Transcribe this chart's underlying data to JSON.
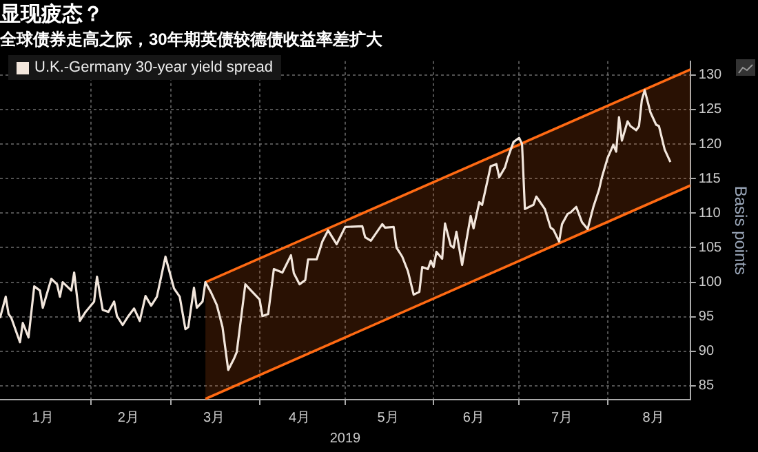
{
  "chart_data": {
    "type": "line",
    "title": "显现疲态？",
    "subtitle": "全球债券走高之际，30年期英债较德债收益率差扩大",
    "xlabel": "2019",
    "ylabel": "Basis points",
    "xlim": [
      "2018-12-31",
      "2019-08-30"
    ],
    "xticks": [
      {
        "value": "2019-01-15",
        "label": "1月"
      },
      {
        "value": "2019-02-01",
        "label": null
      },
      {
        "value": "2019-02-14",
        "label": "2月"
      },
      {
        "value": "2019-03-01",
        "label": null
      },
      {
        "value": "2019-03-16",
        "label": "3月"
      },
      {
        "value": "2019-04-01",
        "label": null
      },
      {
        "value": "2019-04-15",
        "label": "4月"
      },
      {
        "value": "2019-05-01",
        "label": null
      },
      {
        "value": "2019-05-16",
        "label": "5月"
      },
      {
        "value": "2019-06-01",
        "label": null
      },
      {
        "value": "2019-06-15",
        "label": "6月"
      },
      {
        "value": "2019-07-01",
        "label": null
      },
      {
        "value": "2019-07-16",
        "label": "7月"
      },
      {
        "value": "2019-08-01",
        "label": null
      },
      {
        "value": "2019-08-17",
        "label": "8月"
      }
    ],
    "ylim": [
      83,
      132
    ],
    "yticks": [
      85,
      90,
      95,
      100,
      105,
      110,
      115,
      120,
      125,
      130
    ],
    "grid": true,
    "legend": "top left",
    "marker": "none",
    "line_style": "solid",
    "series": [
      {
        "name": "U.K.-Germany 30-year yield spread",
        "color": "#f2e6dc",
        "x": [
          "2018-12-31",
          "2019-01-02",
          "2019-01-03",
          "2019-01-04",
          "2019-01-07",
          "2019-01-08",
          "2019-01-10",
          "2019-01-12",
          "2019-01-14",
          "2019-01-15",
          "2019-01-18",
          "2019-01-20",
          "2019-01-21",
          "2019-01-22",
          "2019-01-25",
          "2019-01-26",
          "2019-01-28",
          "2019-01-30",
          "2019-02-02",
          "2019-02-03",
          "2019-02-05",
          "2019-02-07",
          "2019-02-09",
          "2019-02-10",
          "2019-02-12",
          "2019-02-14",
          "2019-02-16",
          "2019-02-18",
          "2019-02-20",
          "2019-02-22",
          "2019-02-24",
          "2019-02-27",
          "2019-03-02",
          "2019-03-04",
          "2019-03-06",
          "2019-03-07",
          "2019-03-09",
          "2019-03-10",
          "2019-03-12",
          "2019-03-13",
          "2019-03-15",
          "2019-03-17",
          "2019-03-19",
          "2019-03-21",
          "2019-03-23",
          "2019-03-24",
          "2019-03-27",
          "2019-03-29",
          "2019-04-01",
          "2019-04-02",
          "2019-04-04",
          "2019-04-06",
          "2019-04-09",
          "2019-04-12",
          "2019-04-13",
          "2019-04-15",
          "2019-04-17",
          "2019-04-18",
          "2019-04-21",
          "2019-04-23",
          "2019-04-25",
          "2019-04-28",
          "2019-05-01",
          "2019-05-07",
          "2019-05-08",
          "2019-05-10",
          "2019-05-14",
          "2019-05-15",
          "2019-05-18",
          "2019-05-19",
          "2019-05-21",
          "2019-05-23",
          "2019-05-25",
          "2019-05-27",
          "2019-05-28",
          "2019-05-30",
          "2019-05-31",
          "2019-06-01",
          "2019-06-02",
          "2019-06-04",
          "2019-06-05",
          "2019-06-07",
          "2019-06-08",
          "2019-06-09",
          "2019-06-11",
          "2019-06-14",
          "2019-06-15",
          "2019-06-17",
          "2019-06-18",
          "2019-06-20",
          "2019-06-21",
          "2019-06-23",
          "2019-06-24",
          "2019-06-26",
          "2019-06-27",
          "2019-06-29",
          "2019-07-01",
          "2019-07-02",
          "2019-07-03",
          "2019-07-05",
          "2019-07-06",
          "2019-07-07",
          "2019-07-10",
          "2019-07-12",
          "2019-07-13",
          "2019-07-15",
          "2019-07-16",
          "2019-07-18",
          "2019-07-19",
          "2019-07-21",
          "2019-07-23",
          "2019-07-25",
          "2019-07-27",
          "2019-07-29",
          "2019-07-30",
          "2019-08-01",
          "2019-08-03",
          "2019-08-04",
          "2019-08-05",
          "2019-08-06",
          "2019-08-08",
          "2019-08-09",
          "2019-08-11",
          "2019-08-12",
          "2019-08-13",
          "2019-08-14",
          "2019-08-16",
          "2019-08-18",
          "2019-08-19",
          "2019-08-21",
          "2019-08-23"
        ],
        "values": [
          94.8,
          97.9,
          95.4,
          94.8,
          91.3,
          94.1,
          92.0,
          99.4,
          98.8,
          96.3,
          100.5,
          99.7,
          97.9,
          100.0,
          98.8,
          101.4,
          94.4,
          95.7,
          97.2,
          100.8,
          96.0,
          95.7,
          97.2,
          95.1,
          93.8,
          95.1,
          96.2,
          94.4,
          98.0,
          96.6,
          97.9,
          103.7,
          99.1,
          97.9,
          93.2,
          93.5,
          99.2,
          96.3,
          97.2,
          100.0,
          98.5,
          96.7,
          93.5,
          87.3,
          88.9,
          89.9,
          99.7,
          98.8,
          97.5,
          95.1,
          95.4,
          101.9,
          101.4,
          103.9,
          101.3,
          99.7,
          100.3,
          103.3,
          103.3,
          105.9,
          107.5,
          105.5,
          108.0,
          108.1,
          106.5,
          106.0,
          108.4,
          107.9,
          108.0,
          105.0,
          103.7,
          101.6,
          98.2,
          98.6,
          102.2,
          101.9,
          103.1,
          102.2,
          104.4,
          103.4,
          108.5,
          105.3,
          105.0,
          107.3,
          102.5,
          109.6,
          107.8,
          111.6,
          111.2,
          114.9,
          116.8,
          117.1,
          115.2,
          116.6,
          118.0,
          120.3,
          120.9,
          120.0,
          110.6,
          111.0,
          111.2,
          112.4,
          110.6,
          107.9,
          107.6,
          105.9,
          108.4,
          109.9,
          110.1,
          110.9,
          108.7,
          107.7,
          110.9,
          113.4,
          115.2,
          118.0,
          119.9,
          118.9,
          123.9,
          120.5,
          123.3,
          122.6,
          122.0,
          122.6,
          126.4,
          127.8,
          124.6,
          122.8,
          122.6,
          119.2,
          117.4
        ]
      },
      {
        "type": "line",
        "color": "#ff6a13",
        "x": [
          "2019-03-13",
          "2019-08-30"
        ],
        "values": [
          100.0,
          130.8
        ],
        "lower": [
          83.1,
          114.0
        ],
        "upper": [
          100.0,
          130.8
        ]
      },
      {
        "type": "line",
        "color": "#ff6a13",
        "x": [
          "2019-03-13",
          "2019-08-30"
        ],
        "values": [
          83.1,
          114.0
        ]
      }
    ]
  }
}
